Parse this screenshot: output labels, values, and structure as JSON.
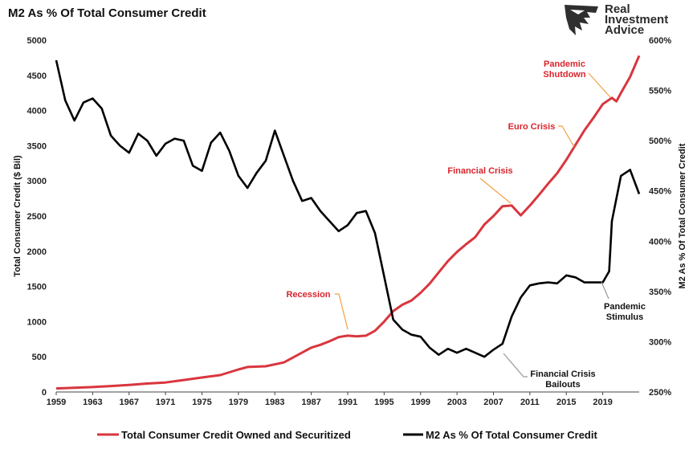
{
  "logo": {
    "lines": [
      "Real",
      "Investment",
      "Advice"
    ]
  },
  "colors": {
    "credit": "#d9363e",
    "m2": "#000000",
    "annotation_red": "#d9242c",
    "annotation_black": "#111111",
    "leader_orange": "#f0a040",
    "leader_gray": "#999999"
  },
  "chart_data": {
    "type": "line",
    "title": "M2 As % Of Total Consumer Credit",
    "xlabel": "",
    "ylabel": "Total Consumer Credit ($ Bil)",
    "y2label": "M2 As % Of Total Consumer Credit",
    "xlim": [
      1959,
      2023
    ],
    "ylim": [
      0,
      5000
    ],
    "y2lim": [
      250,
      600
    ],
    "x_ticks": [
      "1959",
      "1963",
      "1967",
      "1971",
      "1975",
      "1979",
      "1983",
      "1987",
      "1991",
      "1995",
      "1999",
      "2003",
      "2007",
      "2011",
      "2015",
      "2019"
    ],
    "y_ticks": [
      "0",
      "500",
      "1000",
      "1500",
      "2000",
      "2500",
      "3000",
      "3500",
      "4000",
      "4500",
      "5000"
    ],
    "y2_ticks": [
      "250%",
      "300%",
      "350%",
      "400%",
      "450%",
      "500%",
      "550%",
      "600%"
    ],
    "grid": false,
    "legend_position": "bottom",
    "series": [
      {
        "name": "Total Consumer Credit Owned and Securitized",
        "axis": "left",
        "points": [
          [
            1959,
            50
          ],
          [
            1961,
            60
          ],
          [
            1963,
            70
          ],
          [
            1965,
            85
          ],
          [
            1967,
            100
          ],
          [
            1969,
            120
          ],
          [
            1971,
            135
          ],
          [
            1973,
            170
          ],
          [
            1975,
            205
          ],
          [
            1977,
            240
          ],
          [
            1979,
            320
          ],
          [
            1980,
            355
          ],
          [
            1982,
            365
          ],
          [
            1984,
            420
          ],
          [
            1986,
            560
          ],
          [
            1987,
            630
          ],
          [
            1988,
            670
          ],
          [
            1989,
            720
          ],
          [
            1990,
            780
          ],
          [
            1991,
            800
          ],
          [
            1992,
            790
          ],
          [
            1993,
            800
          ],
          [
            1994,
            870
          ],
          [
            1995,
            1000
          ],
          [
            1996,
            1150
          ],
          [
            1997,
            1240
          ],
          [
            1998,
            1300
          ],
          [
            1999,
            1410
          ],
          [
            2000,
            1540
          ],
          [
            2001,
            1700
          ],
          [
            2002,
            1860
          ],
          [
            2003,
            1990
          ],
          [
            2004,
            2100
          ],
          [
            2005,
            2200
          ],
          [
            2006,
            2380
          ],
          [
            2007,
            2500
          ],
          [
            2008,
            2640
          ],
          [
            2009,
            2650
          ],
          [
            2010,
            2510
          ],
          [
            2011,
            2650
          ],
          [
            2012,
            2800
          ],
          [
            2013,
            2960
          ],
          [
            2014,
            3110
          ],
          [
            2015,
            3300
          ],
          [
            2016,
            3510
          ],
          [
            2017,
            3720
          ],
          [
            2018,
            3900
          ],
          [
            2019,
            4090
          ],
          [
            2020,
            4180
          ],
          [
            2020.5,
            4130
          ],
          [
            2021,
            4250
          ],
          [
            2022,
            4480
          ],
          [
            2023,
            4780
          ]
        ]
      },
      {
        "name": "M2 As % Of Total Consumer Credit",
        "axis": "right",
        "points": [
          [
            1959,
            580
          ],
          [
            1960,
            540
          ],
          [
            1961,
            520
          ],
          [
            1962,
            538
          ],
          [
            1963,
            542
          ],
          [
            1964,
            532
          ],
          [
            1965,
            505
          ],
          [
            1966,
            495
          ],
          [
            1967,
            488
          ],
          [
            1968,
            507
          ],
          [
            1969,
            500
          ],
          [
            1970,
            485
          ],
          [
            1971,
            497
          ],
          [
            1972,
            502
          ],
          [
            1973,
            500
          ],
          [
            1974,
            475
          ],
          [
            1975,
            470
          ],
          [
            1976,
            498
          ],
          [
            1977,
            508
          ],
          [
            1978,
            490
          ],
          [
            1979,
            465
          ],
          [
            1980,
            453
          ],
          [
            1981,
            468
          ],
          [
            1982,
            480
          ],
          [
            1983,
            510
          ],
          [
            1984,
            485
          ],
          [
            1985,
            460
          ],
          [
            1986,
            440
          ],
          [
            1987,
            443
          ],
          [
            1988,
            430
          ],
          [
            1989,
            420
          ],
          [
            1990,
            410
          ],
          [
            1991,
            416
          ],
          [
            1992,
            428
          ],
          [
            1993,
            430
          ],
          [
            1994,
            408
          ],
          [
            1995,
            365
          ],
          [
            1996,
            322
          ],
          [
            1997,
            312
          ],
          [
            1998,
            307
          ],
          [
            1999,
            305
          ],
          [
            2000,
            294
          ],
          [
            2001,
            287
          ],
          [
            2002,
            293
          ],
          [
            2003,
            289
          ],
          [
            2004,
            293
          ],
          [
            2005,
            289
          ],
          [
            2006,
            285
          ],
          [
            2007,
            292
          ],
          [
            2008,
            298
          ],
          [
            2009,
            325
          ],
          [
            2010,
            344
          ],
          [
            2011,
            356
          ],
          [
            2012,
            358
          ],
          [
            2013,
            359
          ],
          [
            2014,
            358
          ],
          [
            2015,
            366
          ],
          [
            2016,
            364
          ],
          [
            2017,
            359
          ],
          [
            2018,
            359
          ],
          [
            2019,
            359
          ],
          [
            2019.7,
            370
          ],
          [
            2020,
            420
          ],
          [
            2021,
            465
          ],
          [
            2022,
            471
          ],
          [
            2023,
            447
          ]
        ]
      }
    ],
    "annotations": [
      {
        "text": [
          "Recession"
        ],
        "color": "red",
        "at": [
          1991,
          800
        ]
      },
      {
        "text": [
          "Financial Crisis"
        ],
        "color": "red",
        "at": [
          2009,
          2650
        ]
      },
      {
        "text": [
          "Euro Crisis"
        ],
        "color": "red",
        "at": [
          2016,
          3510
        ]
      },
      {
        "text": [
          "Pandemic",
          "Shutdown"
        ],
        "color": "red",
        "at": [
          2020,
          4180
        ]
      },
      {
        "text": [
          "Pandemic",
          "Stimulus"
        ],
        "color": "black",
        "at": [
          2019.7,
          370
        ]
      },
      {
        "text": [
          "Financial Crisis",
          "Bailouts"
        ],
        "color": "black",
        "at": [
          2008,
          289
        ]
      }
    ]
  }
}
